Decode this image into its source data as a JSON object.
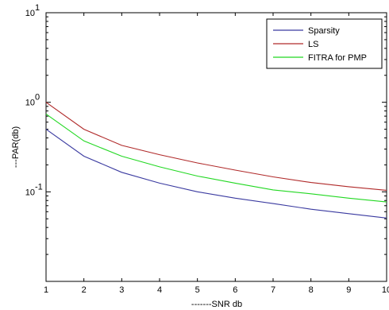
{
  "chart_data": {
    "type": "line",
    "xlabel": "-------SNR db",
    "ylabel": "---PAR(db)",
    "xlim": [
      1,
      10
    ],
    "ylim": [
      0.01,
      10
    ],
    "yscale": "log",
    "grid": false,
    "legend_position": "top-right",
    "x": [
      1,
      2,
      3,
      4,
      5,
      6,
      7,
      8,
      9,
      10
    ],
    "x_ticks": [
      "1",
      "2",
      "3",
      "4",
      "5",
      "6",
      "7",
      "8",
      "9",
      "10"
    ],
    "y_ticks": [
      {
        "value": 10,
        "base": "10",
        "exp": "1"
      },
      {
        "value": 1,
        "base": "10",
        "exp": "0"
      },
      {
        "value": 0.1,
        "base": "10",
        "exp": "-1"
      }
    ],
    "series": [
      {
        "name": "Sparsity",
        "color": "#3a3aa0",
        "values": [
          0.5,
          0.25,
          0.165,
          0.125,
          0.1,
          0.085,
          0.074,
          0.064,
          0.057,
          0.051
        ]
      },
      {
        "name": "LS",
        "color": "#b02a2a",
        "values": [
          1.0,
          0.5,
          0.33,
          0.26,
          0.21,
          0.175,
          0.147,
          0.127,
          0.114,
          0.104
        ]
      },
      {
        "name": "FITRA for PMP",
        "color": "#22d822",
        "values": [
          0.74,
          0.37,
          0.25,
          0.19,
          0.15,
          0.125,
          0.105,
          0.095,
          0.085,
          0.077
        ]
      }
    ]
  }
}
